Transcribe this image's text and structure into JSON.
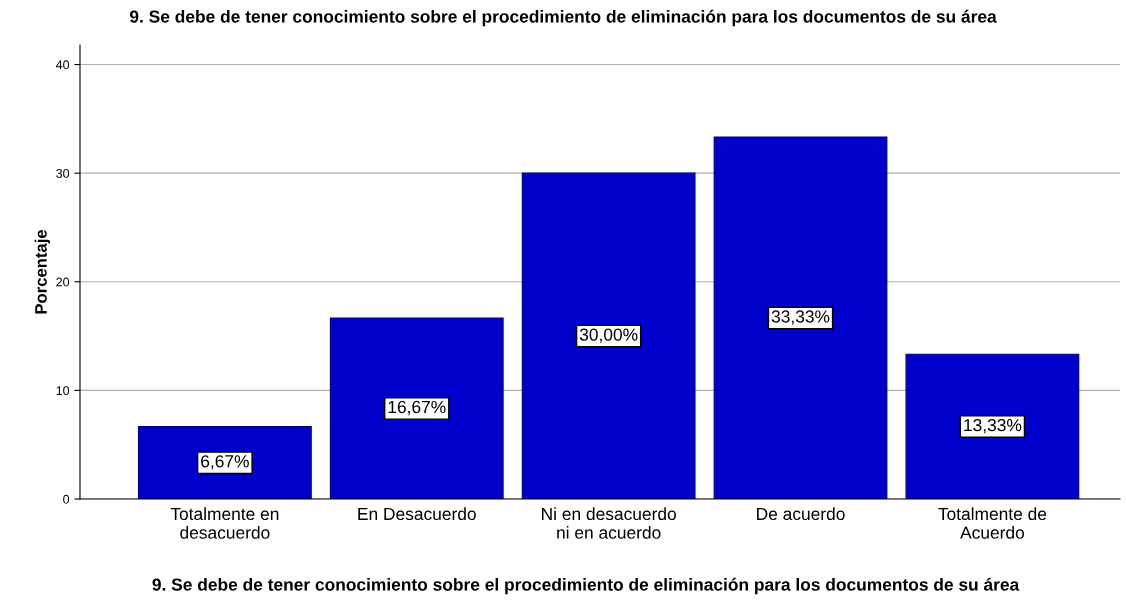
{
  "chart_data": {
    "type": "bar",
    "title": "9. Se debe de tener conocimiento sobre el procedimiento de eliminación para los documentos de su área",
    "xlabel": "9. Se debe de tener conocimiento sobre el procedimiento de eliminación para los documentos de su área",
    "ylabel": "Porcentaje",
    "categories": [
      "Totalmente en\ndesacuerdo",
      "En Desacuerdo",
      "Ni en desacuerdo\nni en acuerdo",
      "De acuerdo",
      "Totalmente de\nAcuerdo"
    ],
    "values": [
      6.67,
      16.67,
      30.0,
      33.33,
      13.33
    ],
    "value_labels": [
      "6,67%",
      "16,67%",
      "30,00%",
      "33,33%",
      "13,33%"
    ],
    "color": "#0000cc",
    "ylim": [
      0,
      41.8
    ],
    "yticks": [
      0,
      10,
      20,
      30,
      40
    ],
    "grid": "y",
    "legend": false
  }
}
